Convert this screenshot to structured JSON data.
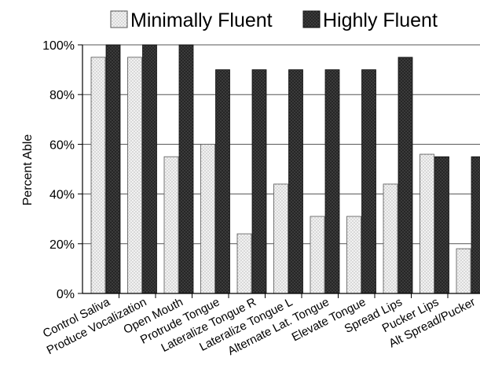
{
  "chart_data": {
    "type": "bar",
    "title": "",
    "xlabel": "",
    "ylabel": "Percent Able",
    "ylim": [
      0,
      100
    ],
    "yticks": [
      "0%",
      "20%",
      "40%",
      "60%",
      "80%",
      "100%"
    ],
    "grid": true,
    "legend_position": "top",
    "categories": [
      "Control Saliva",
      "Produce Vocalization",
      "Open Mouth",
      "Protrude Tongue",
      "Lateralize Tongue R",
      "Lateralize Tongue L",
      "Alternate Lat. Tongue",
      "Elevate Tongue",
      "Spread Lips",
      "Pucker Lips",
      "Alt Spread/Pucker"
    ],
    "series": [
      {
        "name": "Minimally Fluent",
        "color": "#ededed",
        "pattern": "light-dotted",
        "values": [
          95,
          95,
          55,
          60,
          24,
          44,
          31,
          31,
          44,
          56,
          18
        ]
      },
      {
        "name": "Highly Fluent",
        "color": "#2a2a2a",
        "pattern": "dark-dotted",
        "values": [
          100,
          100,
          100,
          90,
          90,
          90,
          90,
          90,
          95,
          55,
          55
        ]
      }
    ]
  }
}
